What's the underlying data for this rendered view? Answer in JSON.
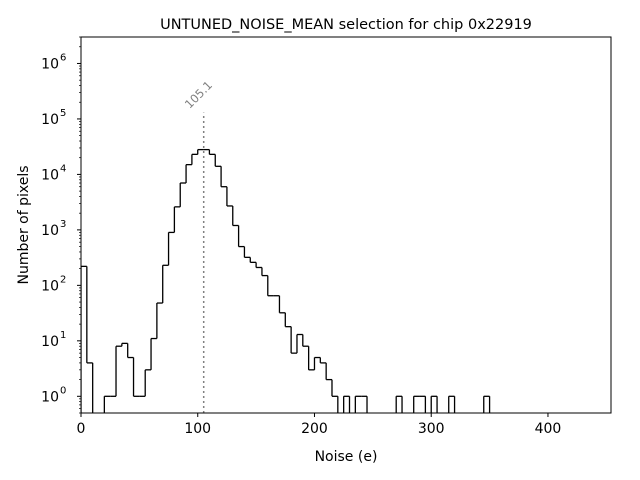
{
  "chart_data": {
    "type": "histogram",
    "title": "UNTUNED_NOISE_MEAN selection for chip 0x22919",
    "xlabel": "Noise (e)",
    "ylabel": "Number of pixels",
    "xlim": [
      0,
      454
    ],
    "ylim": [
      0.5,
      3000000
    ],
    "yscale": "log",
    "grid": false,
    "x_ticks": [
      "0",
      "100",
      "200",
      "300",
      "400"
    ],
    "x_tick_values": [
      0,
      100,
      200,
      300,
      400
    ],
    "y_ticks": [
      {
        "base": "10",
        "exp": "0"
      },
      {
        "base": "10",
        "exp": "1"
      },
      {
        "base": "10",
        "exp": "2"
      },
      {
        "base": "10",
        "exp": "3"
      },
      {
        "base": "10",
        "exp": "4"
      },
      {
        "base": "10",
        "exp": "5"
      },
      {
        "base": "10",
        "exp": "6"
      }
    ],
    "bin_width": 5,
    "bin_start": 0,
    "counts": [
      220,
      4,
      0,
      0,
      1,
      1,
      8,
      9,
      5,
      1,
      1,
      3,
      11,
      48,
      230,
      900,
      2600,
      7000,
      15000,
      23000,
      28000,
      28000,
      23000,
      14000,
      6000,
      2700,
      1200,
      500,
      320,
      260,
      210,
      150,
      65,
      65,
      32,
      18,
      6,
      13,
      8,
      3,
      5,
      4,
      2,
      1,
      0,
      1,
      0,
      1,
      1,
      0,
      0,
      0,
      0,
      0,
      1,
      0,
      0,
      1,
      1,
      0,
      1,
      0,
      0,
      1,
      0,
      0,
      0,
      0,
      0,
      1
    ],
    "annotation": {
      "value": 105.1,
      "label": "105.1",
      "style": "dotted",
      "color": "#808080"
    },
    "line_color": "#000000"
  }
}
